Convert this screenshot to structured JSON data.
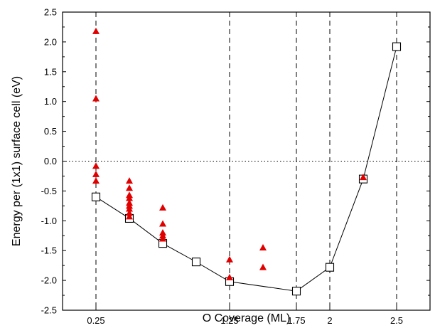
{
  "chart_data": {
    "type": "scatter",
    "xlabel": "O Coverage (ML)",
    "ylabel": "Energy per (1x1) surface cell (eV)",
    "xlim": [
      0.0,
      2.75
    ],
    "ylim": [
      -2.5,
      2.5
    ],
    "x_ticks": [
      {
        "value": 0.25,
        "label": "0.25"
      },
      {
        "value": 1.25,
        "label": "1.25"
      },
      {
        "value": 1.75,
        "label": "1.75"
      },
      {
        "value": 2.0,
        "label": "2"
      },
      {
        "value": 2.5,
        "label": "2.5"
      }
    ],
    "y_ticks": [
      {
        "value": 2.5,
        "label": "2.5"
      },
      {
        "value": 2.0,
        "label": "2.0"
      },
      {
        "value": 1.5,
        "label": "1.5"
      },
      {
        "value": 1.0,
        "label": "1.0"
      },
      {
        "value": 0.5,
        "label": "0.5"
      },
      {
        "value": 0.0,
        "label": "0.0"
      },
      {
        "value": -0.5,
        "label": "-0.5"
      },
      {
        "value": -1.0,
        "label": "-1.0"
      },
      {
        "value": -1.5,
        "label": "-1.5"
      },
      {
        "value": -2.0,
        "label": "-2.0"
      },
      {
        "value": -2.5,
        "label": "-2.5"
      }
    ],
    "vertical_dashed_lines": [
      0.25,
      1.25,
      1.75,
      2.0,
      2.5
    ],
    "horizontal_dotted_line": 0.0,
    "grid": false,
    "legend": "none",
    "series": [
      {
        "style": "line-open-square",
        "color": "#000000",
        "x": [
          0.25,
          0.5,
          0.75,
          1.0,
          1.25,
          1.75,
          2.0,
          2.25,
          2.5
        ],
        "y": [
          -0.6,
          -0.96,
          -1.38,
          -1.69,
          -2.02,
          -2.18,
          -1.78,
          -0.3,
          1.92
        ]
      },
      {
        "style": "filled-triangle",
        "color": "#e00000",
        "x": [
          0.25,
          0.25,
          0.25,
          0.25,
          0.25,
          0.5,
          0.5,
          0.5,
          0.5,
          0.5,
          0.5,
          0.5,
          0.5,
          0.5,
          0.75,
          0.75,
          0.75,
          0.75,
          0.75,
          1.25,
          1.25,
          1.5,
          1.5,
          2.25
        ],
        "y": [
          2.18,
          1.05,
          -0.08,
          -0.22,
          -0.33,
          -0.33,
          -0.45,
          -0.57,
          -0.62,
          -0.7,
          -0.75,
          -0.8,
          -0.87,
          -0.93,
          -0.78,
          -1.05,
          -1.2,
          -1.25,
          -1.3,
          -1.65,
          -1.95,
          -1.45,
          -1.78,
          -0.27
        ]
      }
    ]
  }
}
